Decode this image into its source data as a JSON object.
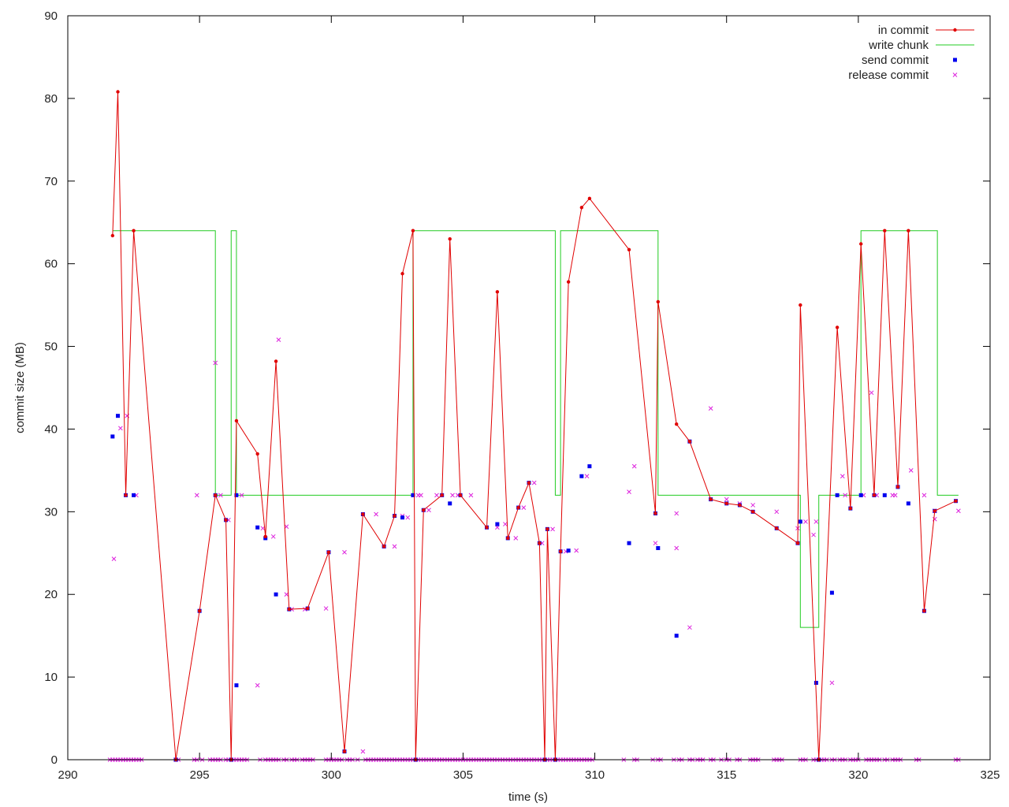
{
  "chart_data": {
    "type": "line",
    "xlabel": "time (s)",
    "ylabel": "commit size (MB)",
    "xlim": [
      290,
      325
    ],
    "ylim": [
      0,
      90
    ],
    "xticks": [
      "290",
      "295",
      "300",
      "305",
      "310",
      "315",
      "320",
      "325"
    ],
    "yticks": [
      "0",
      "10",
      "20",
      "30",
      "40",
      "50",
      "60",
      "70",
      "80",
      "90"
    ],
    "grid": false,
    "legend_position": "top-right",
    "colors": {
      "in_commit": "#e00000",
      "write_chunk": "#22cc22",
      "send_commit": "#0000ee",
      "release_commit": "#dd22dd"
    },
    "series": [
      {
        "name": "in commit",
        "style": "linespoints",
        "points": [
          [
            291.7,
            63.4
          ],
          [
            291.9,
            80.8
          ],
          [
            292.2,
            32
          ],
          [
            292.5,
            64
          ],
          [
            294.1,
            0
          ],
          [
            295.0,
            18
          ],
          [
            295.6,
            32
          ],
          [
            296.0,
            29
          ],
          [
            296.2,
            0
          ],
          [
            296.4,
            41
          ],
          [
            297.2,
            37
          ],
          [
            297.5,
            27
          ],
          [
            297.9,
            48.2
          ],
          [
            298.4,
            18.2
          ],
          [
            299.1,
            18.3
          ],
          [
            299.9,
            25.1
          ],
          [
            300.5,
            1
          ],
          [
            301.2,
            29.7
          ],
          [
            302.0,
            25.8
          ],
          [
            302.4,
            29.5
          ],
          [
            302.7,
            58.8
          ],
          [
            303.1,
            64
          ],
          [
            303.2,
            0
          ],
          [
            303.5,
            30.2
          ],
          [
            304.2,
            32
          ],
          [
            304.5,
            63
          ],
          [
            304.9,
            32
          ],
          [
            305.9,
            28.1
          ],
          [
            306.3,
            56.6
          ],
          [
            306.7,
            26.8
          ],
          [
            307.1,
            30.5
          ],
          [
            307.5,
            33.5
          ],
          [
            307.9,
            26.2
          ],
          [
            308.1,
            0
          ],
          [
            308.2,
            27.9
          ],
          [
            308.5,
            0
          ],
          [
            308.7,
            25.2
          ],
          [
            309.0,
            57.8
          ],
          [
            309.5,
            66.8
          ],
          [
            309.8,
            67.9
          ],
          [
            311.3,
            61.7
          ],
          [
            312.3,
            29.8
          ],
          [
            312.4,
            55.4
          ],
          [
            313.1,
            40.6
          ],
          [
            313.6,
            38.5
          ],
          [
            314.4,
            31.5
          ],
          [
            315.0,
            31.0
          ],
          [
            315.5,
            30.8
          ],
          [
            316.0,
            30.0
          ],
          [
            316.9,
            28.0
          ],
          [
            317.7,
            26.2
          ],
          [
            317.8,
            55
          ],
          [
            318.5,
            0
          ],
          [
            319.2,
            52.3
          ],
          [
            319.7,
            30.4
          ],
          [
            320.1,
            62.4
          ],
          [
            320.6,
            32
          ],
          [
            321.0,
            64
          ],
          [
            321.5,
            33
          ],
          [
            321.9,
            64
          ],
          [
            322.5,
            18
          ],
          [
            322.9,
            30.1
          ],
          [
            323.7,
            31.3
          ]
        ]
      },
      {
        "name": "write chunk",
        "style": "steps",
        "points": [
          [
            291.7,
            64
          ],
          [
            295.6,
            64
          ],
          [
            295.6,
            32
          ],
          [
            296.2,
            32
          ],
          [
            296.2,
            64
          ],
          [
            296.4,
            64
          ],
          [
            296.4,
            32
          ],
          [
            303.1,
            32
          ],
          [
            303.1,
            64
          ],
          [
            308.5,
            64
          ],
          [
            308.5,
            32
          ],
          [
            308.7,
            32
          ],
          [
            308.7,
            64
          ],
          [
            312.4,
            64
          ],
          [
            312.4,
            32
          ],
          [
            317.8,
            32
          ],
          [
            317.8,
            16
          ],
          [
            318.5,
            16
          ],
          [
            318.5,
            32
          ],
          [
            320.1,
            32
          ],
          [
            320.1,
            64
          ],
          [
            323.0,
            64
          ],
          [
            323.0,
            32
          ],
          [
            323.8,
            32
          ]
        ]
      },
      {
        "name": "send commit",
        "style": "points",
        "points": [
          [
            291.7,
            39.1
          ],
          [
            291.9,
            41.6
          ],
          [
            292.2,
            32
          ],
          [
            292.5,
            32
          ],
          [
            294.1,
            0
          ],
          [
            295.0,
            18
          ],
          [
            295.6,
            32
          ],
          [
            296.0,
            29
          ],
          [
            296.2,
            0
          ],
          [
            296.4,
            32
          ],
          [
            296.4,
            9
          ],
          [
            297.2,
            28.1
          ],
          [
            297.5,
            26.8
          ],
          [
            297.9,
            20
          ],
          [
            298.4,
            18.2
          ],
          [
            299.1,
            18.3
          ],
          [
            299.9,
            25.1
          ],
          [
            300.5,
            1
          ],
          [
            301.2,
            29.7
          ],
          [
            302.0,
            25.8
          ],
          [
            302.4,
            29.5
          ],
          [
            302.7,
            29.3
          ],
          [
            303.1,
            32
          ],
          [
            303.2,
            0
          ],
          [
            303.5,
            30.2
          ],
          [
            304.2,
            32
          ],
          [
            304.5,
            31
          ],
          [
            304.9,
            32
          ],
          [
            305.9,
            28.1
          ],
          [
            306.3,
            28.5
          ],
          [
            306.7,
            26.8
          ],
          [
            307.1,
            30.5
          ],
          [
            307.5,
            33.5
          ],
          [
            307.9,
            26.2
          ],
          [
            308.1,
            0
          ],
          [
            308.2,
            27.9
          ],
          [
            308.5,
            0
          ],
          [
            308.7,
            25.2
          ],
          [
            309.0,
            25.3
          ],
          [
            309.5,
            34.3
          ],
          [
            309.8,
            35.5
          ],
          [
            311.3,
            26.2
          ],
          [
            312.3,
            29.8
          ],
          [
            312.4,
            25.6
          ],
          [
            313.1,
            15
          ],
          [
            313.6,
            38.5
          ],
          [
            314.4,
            31.5
          ],
          [
            315.0,
            31.0
          ],
          [
            315.5,
            30.8
          ],
          [
            316.0,
            30.0
          ],
          [
            316.9,
            28.0
          ],
          [
            317.7,
            26.2
          ],
          [
            317.8,
            28.8
          ],
          [
            318.4,
            9.3
          ],
          [
            318.5,
            0
          ],
          [
            319.0,
            20.2
          ],
          [
            319.2,
            32
          ],
          [
            319.7,
            30.4
          ],
          [
            320.1,
            32
          ],
          [
            320.6,
            32
          ],
          [
            321.0,
            32
          ],
          [
            321.5,
            33
          ],
          [
            321.9,
            31.0
          ],
          [
            322.5,
            18
          ],
          [
            322.9,
            30.1
          ],
          [
            323.7,
            31.3
          ]
        ]
      },
      {
        "name": "release commit",
        "style": "points",
        "points": [
          [
            291.75,
            24.3
          ],
          [
            292.0,
            40.1
          ],
          [
            292.25,
            41.6
          ],
          [
            292.6,
            32
          ],
          [
            294.9,
            32
          ],
          [
            295.6,
            48
          ],
          [
            295.8,
            32
          ],
          [
            296.1,
            29
          ],
          [
            296.6,
            32
          ],
          [
            297.2,
            9
          ],
          [
            297.4,
            28
          ],
          [
            297.8,
            27
          ],
          [
            298.0,
            50.8
          ],
          [
            298.3,
            28.2
          ],
          [
            298.3,
            20
          ],
          [
            298.5,
            18.2
          ],
          [
            299.0,
            18.2
          ],
          [
            299.8,
            18.3
          ],
          [
            300.5,
            25.1
          ],
          [
            301.2,
            1
          ],
          [
            301.7,
            29.7
          ],
          [
            302.4,
            25.8
          ],
          [
            302.7,
            29.5
          ],
          [
            302.9,
            29.3
          ],
          [
            303.3,
            32
          ],
          [
            303.4,
            32
          ],
          [
            303.7,
            30.2
          ],
          [
            304.0,
            32
          ],
          [
            304.6,
            32
          ],
          [
            304.8,
            32
          ],
          [
            305.3,
            32
          ],
          [
            306.3,
            28.1
          ],
          [
            306.6,
            28.5
          ],
          [
            307.0,
            26.8
          ],
          [
            307.3,
            30.5
          ],
          [
            307.7,
            33.5
          ],
          [
            308.0,
            26.2
          ],
          [
            308.4,
            27.9
          ],
          [
            308.9,
            25.2
          ],
          [
            309.3,
            25.3
          ],
          [
            309.7,
            34.3
          ],
          [
            311.3,
            32.4
          ],
          [
            311.5,
            35.5
          ],
          [
            312.3,
            26.2
          ],
          [
            313.1,
            29.8
          ],
          [
            313.1,
            25.6
          ],
          [
            313.6,
            16
          ],
          [
            314.4,
            42.5
          ],
          [
            315.0,
            31.5
          ],
          [
            315.5,
            31.0
          ],
          [
            316.0,
            30.8
          ],
          [
            316.9,
            30.0
          ],
          [
            317.7,
            28.0
          ],
          [
            318.0,
            28.8
          ],
          [
            318.3,
            27.2
          ],
          [
            318.4,
            28.8
          ],
          [
            319.0,
            9.3
          ],
          [
            319.4,
            34.3
          ],
          [
            319.5,
            32
          ],
          [
            320.2,
            32
          ],
          [
            320.5,
            44.4
          ],
          [
            320.7,
            32
          ],
          [
            321.3,
            32
          ],
          [
            321.4,
            32
          ],
          [
            322.0,
            35
          ],
          [
            322.5,
            32
          ],
          [
            322.9,
            29.1
          ],
          [
            322.9,
            30.1
          ],
          [
            323.8,
            30.1
          ]
        ]
      }
    ],
    "zero_markers": {
      "y": 0,
      "x": [
        291.6,
        291.7,
        291.8,
        291.9,
        292.0,
        292.1,
        292.2,
        292.3,
        292.4,
        292.5,
        292.6,
        292.7,
        292.8,
        294.1,
        294.2,
        294.8,
        294.9,
        295.1,
        295.4,
        295.5,
        295.6,
        295.7,
        295.8,
        296.0,
        296.1,
        296.2,
        296.3,
        296.4,
        296.5,
        296.6,
        296.7,
        296.8,
        297.3,
        297.5,
        297.6,
        297.7,
        297.8,
        297.9,
        298.0,
        298.2,
        298.3,
        298.5,
        298.6,
        298.7,
        298.9,
        299.0,
        299.1,
        299.2,
        299.3,
        299.8,
        299.9,
        300.0,
        300.1,
        300.2,
        300.3,
        300.4,
        300.6,
        300.7,
        300.8,
        301.0,
        301.3,
        301.4,
        301.5,
        301.6,
        301.7,
        301.8,
        301.9,
        302.0,
        302.1,
        302.2,
        302.3,
        302.4,
        302.5,
        302.6,
        302.7,
        302.8,
        302.9,
        303.0,
        303.1,
        303.2,
        303.3,
        303.4,
        303.5,
        303.6,
        303.7,
        303.8,
        303.9,
        304.0,
        304.1,
        304.2,
        304.3,
        304.4,
        304.5,
        304.6,
        304.7,
        304.8,
        304.9,
        305.0,
        305.1,
        305.2,
        305.3,
        305.4,
        305.5,
        305.6,
        305.7,
        305.8,
        305.9,
        306.0,
        306.1,
        306.2,
        306.3,
        306.4,
        306.5,
        306.6,
        306.7,
        306.8,
        306.9,
        307.0,
        307.1,
        307.2,
        307.3,
        307.4,
        307.5,
        307.6,
        307.7,
        307.8,
        307.9,
        308.0,
        308.1,
        308.2,
        308.3,
        308.4,
        308.5,
        308.6,
        308.7,
        308.8,
        308.9,
        309.0,
        309.1,
        309.2,
        309.3,
        309.4,
        309.5,
        309.6,
        309.7,
        309.8,
        309.9,
        311.1,
        311.5,
        311.6,
        312.2,
        312.4,
        312.5,
        313.0,
        313.2,
        313.3,
        313.6,
        313.7,
        313.9,
        314.0,
        314.1,
        314.4,
        314.5,
        314.8,
        315.0,
        315.1,
        315.4,
        315.5,
        315.9,
        316.0,
        316.1,
        316.2,
        316.8,
        316.9,
        317.0,
        317.1,
        317.8,
        317.9,
        318.0,
        318.3,
        318.4,
        318.5,
        318.6,
        318.7,
        318.8,
        319.0,
        319.1,
        319.3,
        319.4,
        319.5,
        319.7,
        319.8,
        319.9,
        320.0,
        320.3,
        320.4,
        320.5,
        320.6,
        320.7,
        320.8,
        321.0,
        321.1,
        321.3,
        321.4,
        321.5,
        321.6,
        322.2,
        322.3,
        323.7,
        323.8
      ]
    }
  }
}
